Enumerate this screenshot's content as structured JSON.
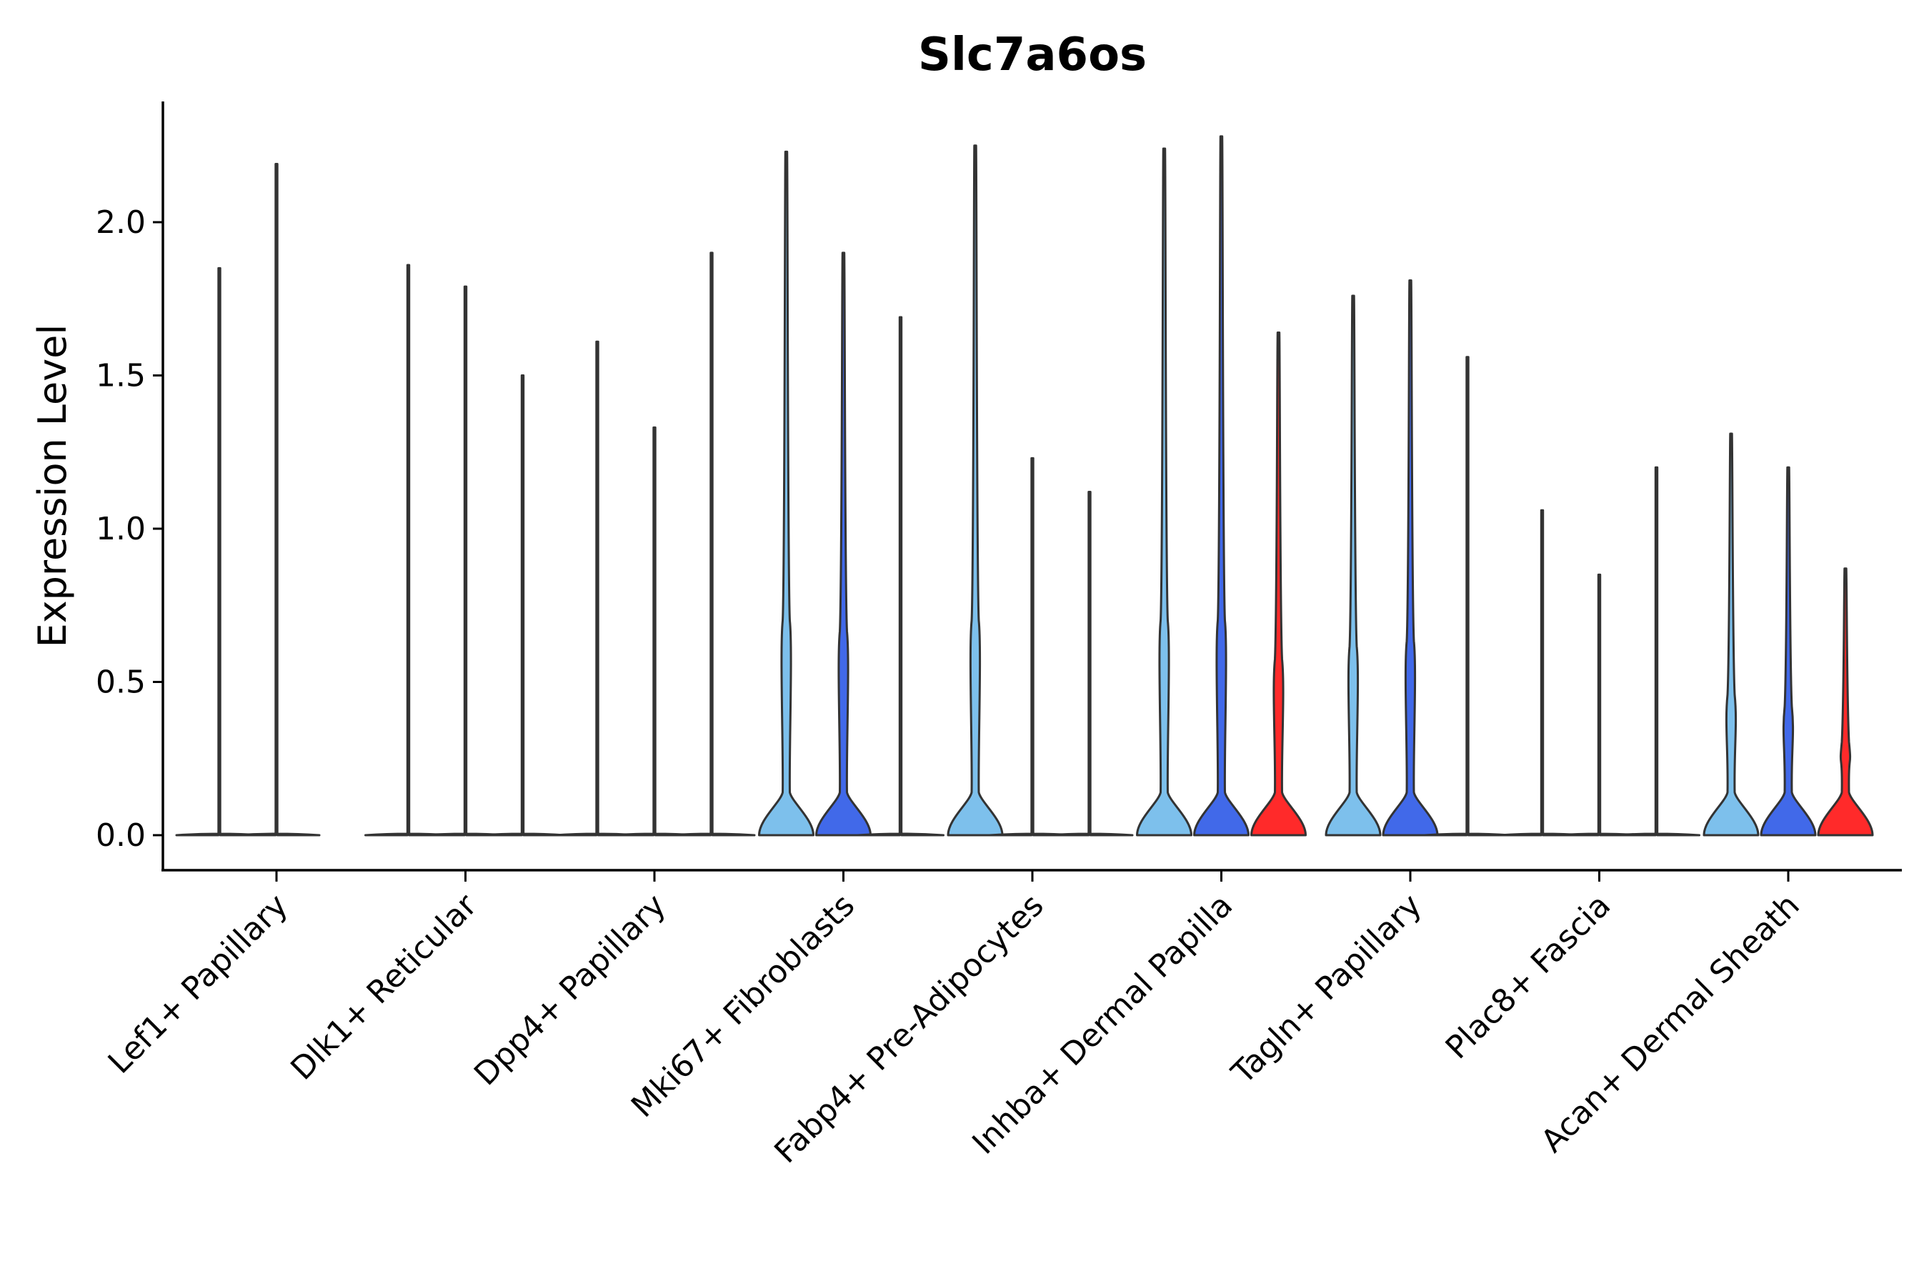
{
  "chart_data": {
    "type": "violin",
    "title": "Slc7a6os",
    "xlabel": "",
    "ylabel": "Expression Level",
    "ylim": [
      -0.12,
      2.4
    ],
    "yticks": [
      0.0,
      0.5,
      1.0,
      1.5,
      2.0
    ],
    "ytick_labels": [
      "0.0",
      "0.5",
      "1.0",
      "1.5",
      "2.0"
    ],
    "categories": [
      "Lef1+ Papillary",
      "Dlk1+ Reticular",
      "Dpp4+ Papillary",
      "Mki67+ Fibroblasts",
      "Fabp4+ Pre-Adipocytes",
      "Inhba+ Dermal Papilla",
      "Tagln+ Papillary",
      "Plac8+ Fascia",
      "Acan+ Dermal Sheath"
    ],
    "colors": {
      "light_blue": "#7dc0ec",
      "blue": "#4169e9",
      "red": "#ff2a2a",
      "axis": "#000000",
      "outline": "#333333"
    },
    "groups": [
      {
        "category": "Lef1+ Papillary",
        "violins": [
          {
            "color": "light_blue",
            "max": 1.85,
            "width": 0.0
          },
          {
            "color": "blue",
            "max": 2.19,
            "width": 0.0
          },
          {
            "color": "red",
            "max": 0.0,
            "width": 0.0
          }
        ]
      },
      {
        "category": "Dlk1+ Reticular",
        "violins": [
          {
            "color": "light_blue",
            "max": 1.86,
            "width": 0.0
          },
          {
            "color": "blue",
            "max": 1.79,
            "width": 0.0
          },
          {
            "color": "red",
            "max": 1.5,
            "width": 0.0
          }
        ]
      },
      {
        "category": "Dpp4+ Papillary",
        "violins": [
          {
            "color": "light_blue",
            "max": 1.61,
            "width": 0.0
          },
          {
            "color": "blue",
            "max": 1.33,
            "width": 0.0
          },
          {
            "color": "red",
            "max": 1.9,
            "width": 0.0
          }
        ]
      },
      {
        "category": "Mki67+ Fibroblasts",
        "violins": [
          {
            "color": "light_blue",
            "max": 2.23,
            "width": 1.0
          },
          {
            "color": "blue",
            "max": 1.9,
            "width": 1.0
          },
          {
            "color": "red",
            "max": 1.69,
            "width": 0.0
          }
        ]
      },
      {
        "category": "Fabp4+ Pre-Adipocytes",
        "violins": [
          {
            "color": "light_blue",
            "max": 2.25,
            "width": 1.0
          },
          {
            "color": "blue",
            "max": 1.23,
            "width": 0.0
          },
          {
            "color": "red",
            "max": 1.12,
            "width": 0.0
          }
        ]
      },
      {
        "category": "Inhba+ Dermal Papilla",
        "violins": [
          {
            "color": "light_blue",
            "max": 2.24,
            "width": 1.0
          },
          {
            "color": "blue",
            "max": 2.28,
            "width": 1.0
          },
          {
            "color": "red",
            "max": 1.64,
            "width": 1.0
          }
        ]
      },
      {
        "category": "Tagln+ Papillary",
        "violins": [
          {
            "color": "light_blue",
            "max": 1.76,
            "width": 1.0
          },
          {
            "color": "blue",
            "max": 1.81,
            "width": 1.0
          },
          {
            "color": "red",
            "max": 1.56,
            "width": 0.0
          }
        ]
      },
      {
        "category": "Plac8+ Fascia",
        "violins": [
          {
            "color": "light_blue",
            "max": 1.06,
            "width": 0.0
          },
          {
            "color": "blue",
            "max": 0.85,
            "width": 0.0
          },
          {
            "color": "red",
            "max": 1.2,
            "width": 0.0
          }
        ]
      },
      {
        "category": "Acan+ Dermal Sheath",
        "violins": [
          {
            "color": "light_blue",
            "max": 1.31,
            "width": 1.0
          },
          {
            "color": "blue",
            "max": 1.2,
            "width": 1.0
          },
          {
            "color": "red",
            "max": 0.87,
            "width": 1.0
          }
        ]
      }
    ]
  }
}
